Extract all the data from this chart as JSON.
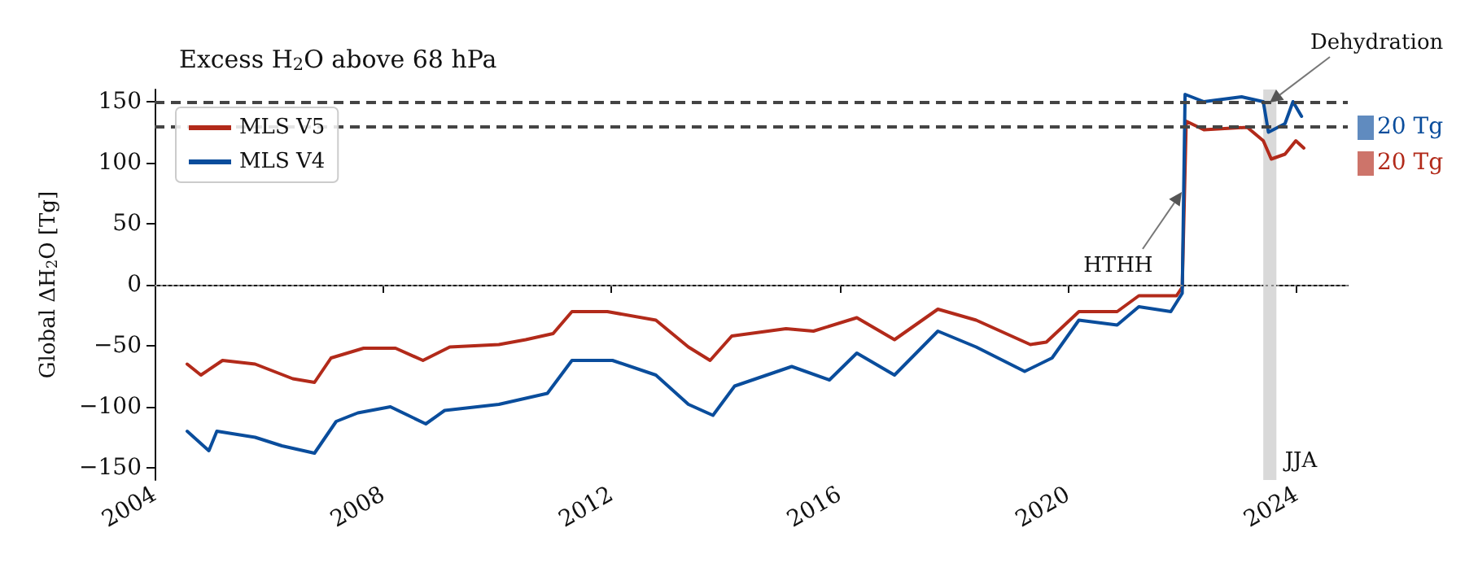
{
  "chart_data": {
    "type": "line",
    "title": "Excess H$_{2}$O above 68 hPa",
    "ylabel": "Global ΔH$_{2}$O [Tg]",
    "xlim": [
      2004,
      2024.9
    ],
    "xticks": [
      2004,
      2008,
      2012,
      2016,
      2020,
      2024
    ],
    "ylim": [
      -160,
      160
    ],
    "yticks": [
      -150,
      -100,
      -50,
      0,
      50,
      100,
      150
    ],
    "grid": false,
    "legend": "top left",
    "line_style": "solid",
    "marker": "none",
    "series": [
      {
        "name": "MLS V5",
        "color": "#b22a1a",
        "x": [
          2004.57,
          2004.81,
          2005.19,
          2005.76,
          2006.42,
          2006.8,
          2007.09,
          2007.66,
          2008.22,
          2008.7,
          2009.17,
          2010.03,
          2010.5,
          2010.98,
          2011.31,
          2011.93,
          2012.78,
          2013.35,
          2013.73,
          2014.11,
          2015.06,
          2015.54,
          2016.3,
          2016.96,
          2017.72,
          2018.39,
          2019.34,
          2019.62,
          2020.19,
          2020.86,
          2021.24,
          2021.9,
          2022.0,
          2022.07,
          2022.38,
          2023.14,
          2023.42,
          2023.56,
          2023.8,
          2023.99,
          2024.13
        ],
        "values": [
          -65,
          -74,
          -62,
          -65,
          -77,
          -80,
          -60,
          -52,
          -52,
          -62,
          -51,
          -49,
          -45,
          -40,
          -22,
          -22,
          -29,
          -51,
          -62,
          -42,
          -36,
          -38,
          -27,
          -45,
          -20,
          -29,
          -49,
          -47,
          -22,
          -22,
          -9,
          -9,
          -2,
          134,
          127,
          129,
          118,
          103,
          107,
          118,
          112
        ]
      },
      {
        "name": "MLS V4",
        "color": "#0a4d9c",
        "x": [
          2004.57,
          2004.95,
          2005.09,
          2005.76,
          2006.23,
          2006.8,
          2007.18,
          2007.56,
          2008.13,
          2008.75,
          2009.08,
          2010.03,
          2010.88,
          2011.31,
          2012.02,
          2012.78,
          2013.35,
          2013.78,
          2014.16,
          2015.16,
          2015.82,
          2016.3,
          2016.96,
          2017.72,
          2018.39,
          2019.24,
          2019.72,
          2020.19,
          2020.86,
          2021.24,
          2021.8,
          2022.0,
          2022.05,
          2022.38,
          2023.04,
          2023.42,
          2023.51,
          2023.8,
          2023.94,
          2024.09
        ],
        "values": [
          -120,
          -136,
          -120,
          -125,
          -132,
          -138,
          -112,
          -105,
          -100,
          -114,
          -103,
          -98,
          -89,
          -62,
          -62,
          -74,
          -98,
          -107,
          -83,
          -67,
          -78,
          -56,
          -74,
          -38,
          -51,
          -71,
          -60,
          -29,
          -33,
          -18,
          -22,
          -7,
          156,
          150,
          154,
          150,
          125,
          132,
          150,
          138
        ]
      }
    ],
    "ref_lines": [
      {
        "axis": "y",
        "value": 150,
        "line_style": "dashed",
        "color": "#444444"
      },
      {
        "axis": "y",
        "value": 130,
        "line_style": "dashed",
        "color": "#444444"
      },
      {
        "axis": "y",
        "value": 0,
        "line_style": "dotted",
        "color": "#888888"
      }
    ],
    "bands": [
      {
        "axis": "x",
        "from": 2023.42,
        "to": 2023.65,
        "label": "JJA",
        "color": "#d9d9d9"
      }
    ],
    "annotations": [
      {
        "text": "HTHH",
        "x": 2021.98,
        "y": 76
      },
      {
        "text": "Dehydration",
        "x": 2023.53,
        "y": 150
      },
      "20 Tg",
      "20 Tg"
    ]
  }
}
